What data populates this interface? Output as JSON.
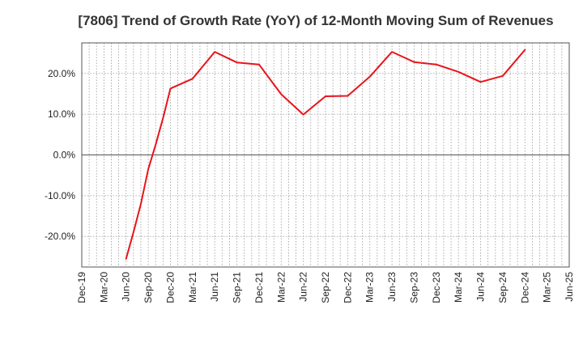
{
  "chart_data": {
    "type": "line",
    "title": "[7806]  Trend of Growth Rate (YoY) of 12-Month Moving Sum of Revenues",
    "xlabel": "",
    "ylabel": "",
    "x_ticks": [
      "Dec-19",
      "Mar-20",
      "Jun-20",
      "Sep-20",
      "Dec-20",
      "Mar-21",
      "Jun-21",
      "Sep-21",
      "Dec-21",
      "Mar-22",
      "Jun-22",
      "Sep-22",
      "Dec-22",
      "Mar-23",
      "Jun-23",
      "Sep-23",
      "Dec-23",
      "Mar-24",
      "Jun-24",
      "Sep-24",
      "Dec-24",
      "Mar-25",
      "Jun-25"
    ],
    "y_ticks": [
      "20.0%",
      "10.0%",
      "0.0%",
      "-10.0%",
      "-20.0%"
    ],
    "y_tick_values": [
      20,
      10,
      0,
      -10,
      -20
    ],
    "ylim": [
      -27.5,
      27.5
    ],
    "grid": true,
    "series": [
      {
        "color": "#e8141b",
        "x": [
          "Jun-20",
          "Jul-20",
          "Aug-20",
          "Sep-20",
          "Oct-20",
          "Nov-20",
          "Dec-20",
          "Mar-21",
          "Jun-21",
          "Sep-21",
          "Dec-21",
          "Mar-22",
          "Jun-22",
          "Sep-22",
          "Dec-22",
          "Mar-23",
          "Jun-23",
          "Sep-23",
          "Dec-23",
          "Mar-24",
          "Jun-24",
          "Sep-24",
          "Dec-24"
        ],
        "values": [
          -25.5,
          -19.0,
          -12.0,
          -3.5,
          2.5,
          9.0,
          16.3,
          18.7,
          25.3,
          22.7,
          22.2,
          14.9,
          9.9,
          14.4,
          14.5,
          19.2,
          25.3,
          22.8,
          22.2,
          20.4,
          17.9,
          19.4,
          25.8
        ]
      }
    ]
  }
}
